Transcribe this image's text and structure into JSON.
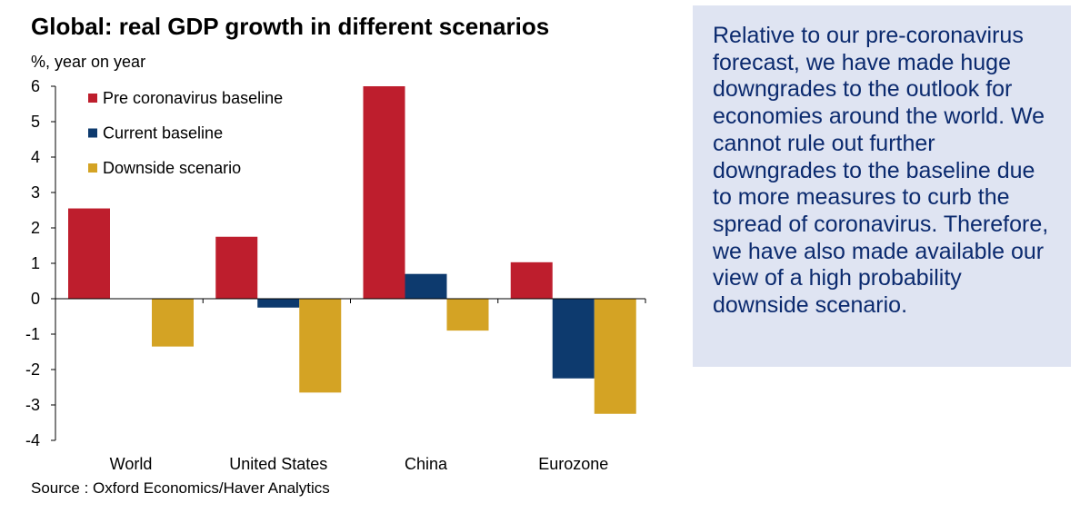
{
  "header": {
    "title": "Global: real GDP growth in different scenarios",
    "ylabel": "%, year on year"
  },
  "footer": {
    "source": "Source : Oxford Economics/Haver Analytics"
  },
  "note": {
    "text": "Relative to our pre-coronavirus forecast, we have made huge downgrades to the outlook for economies around the world. We cannot rule out further downgrades to the baseline due to more measures to curb the spread of coronavirus. Therefore, we have also made available our view of a high probability downside scenario."
  },
  "chart_data": {
    "type": "bar",
    "title": "Global: real GDP growth in different scenarios",
    "ylabel": "%, year on year",
    "xlabel": "",
    "categories": [
      "World",
      "United States",
      "China",
      "Eurozone"
    ],
    "series": [
      {
        "name": "Pre coronavirus baseline",
        "color": "#be1e2d",
        "values": [
          2.55,
          1.75,
          6.0,
          1.03
        ]
      },
      {
        "name": "Current baseline",
        "color": "#0d3a6e",
        "values": [
          0.0,
          -0.25,
          0.7,
          -2.25
        ]
      },
      {
        "name": "Downside scenario",
        "color": "#d4a324",
        "values": [
          -1.35,
          -2.65,
          -0.9,
          -3.25
        ]
      }
    ],
    "ylim": [
      -4,
      6
    ],
    "yticks": [
      -4,
      -3,
      -2,
      -1,
      0,
      1,
      2,
      3,
      4,
      5,
      6
    ],
    "legend_position": "top-left",
    "grid": false
  }
}
